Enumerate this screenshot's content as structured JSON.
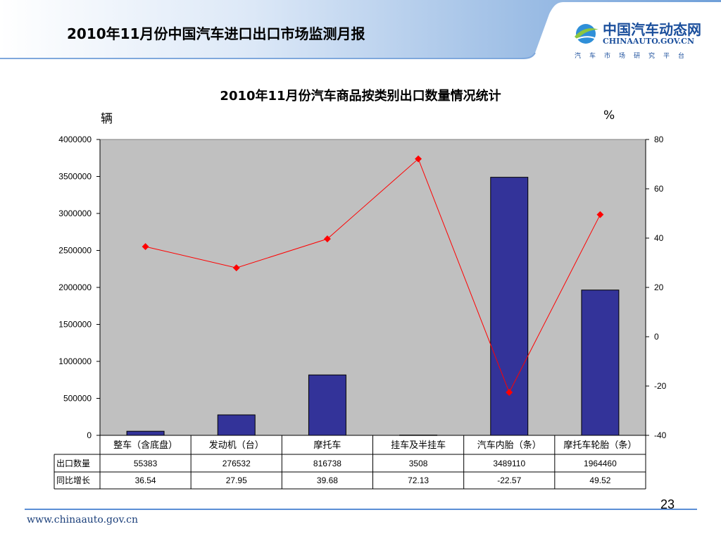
{
  "header": {
    "title": "2010年11月份中国汽车进口出口市场监测月报",
    "logo_cn": "中国汽车动态网",
    "logo_en": "CHINAAUTO.GOV.CN",
    "logo_sub": "汽车市场研究平台"
  },
  "colors": {
    "bar": "#333399",
    "line": "#ff0000",
    "plot_bg": "#c0c0c0",
    "accent": "#5b8ed6"
  },
  "chart_data": {
    "type": "bar",
    "title": "2010年11月份汽车商品按类别出口数量情况统计",
    "ylabel": "辆",
    "y2label": "%",
    "ylim": [
      0,
      4000000
    ],
    "y2lim": [
      -40,
      80
    ],
    "yticks": [
      "4000000",
      "3500000",
      "3000000",
      "2500000",
      "2000000",
      "1500000",
      "1000000",
      "500000",
      "0"
    ],
    "y2ticks": [
      "80",
      "60",
      "40",
      "20",
      "0",
      "-20",
      "-40"
    ],
    "categories": [
      "整车（含底盘）",
      "发动机（台）",
      "摩托车",
      "挂车及半挂车",
      "汽车内胎（条）",
      "摩托车轮胎（条）"
    ],
    "series": [
      {
        "name": "出口数量",
        "type": "bar",
        "axis": "left",
        "values": [
          55383,
          276532,
          816738,
          3508,
          3489110,
          1964460
        ],
        "labels": [
          "55383",
          "276532",
          "816738",
          "3508",
          "3489110",
          "1964460"
        ]
      },
      {
        "name": "同比增长",
        "type": "line",
        "axis": "right",
        "values": [
          36.54,
          27.95,
          39.68,
          72.13,
          -22.57,
          49.52
        ],
        "labels": [
          "36.54",
          "27.95",
          "39.68",
          "72.13",
          "-22.57",
          "49.52"
        ]
      }
    ],
    "grid": false,
    "legend": "table-below"
  },
  "footer": {
    "page_number": "23",
    "url": "www.chinaauto.gov.cn"
  }
}
